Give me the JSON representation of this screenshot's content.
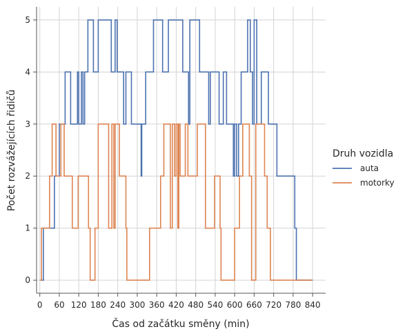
{
  "chart_data": {
    "type": "line",
    "drawstyle": "steps-post",
    "xlabel": "Čas od začátku směny (min)",
    "ylabel": "Počet rozvážejících řidičů",
    "xlim": [
      -10,
      880
    ],
    "ylim": [
      -0.25,
      5.25
    ],
    "xticks": [
      0,
      60,
      120,
      180,
      240,
      300,
      360,
      420,
      480,
      540,
      600,
      660,
      720,
      780,
      840
    ],
    "yticks": [
      0,
      1,
      2,
      3,
      4,
      5
    ],
    "grid": true,
    "legend": {
      "title": "Druh vozidla",
      "placement": "center-right, outside plot"
    },
    "series": [
      {
        "name": "auta",
        "color": "#4c72b0",
        "points": [
          [
            4,
            0
          ],
          [
            11,
            1
          ],
          [
            45,
            2
          ],
          [
            60,
            3
          ],
          [
            78,
            4
          ],
          [
            95,
            3
          ],
          [
            116,
            4
          ],
          [
            120,
            3
          ],
          [
            128,
            4
          ],
          [
            133,
            3
          ],
          [
            138,
            4
          ],
          [
            148,
            5
          ],
          [
            165,
            4
          ],
          [
            180,
            5
          ],
          [
            220,
            4
          ],
          [
            232,
            5
          ],
          [
            238,
            4
          ],
          [
            258,
            3
          ],
          [
            265,
            4
          ],
          [
            282,
            3
          ],
          [
            312,
            2
          ],
          [
            314,
            3
          ],
          [
            326,
            4
          ],
          [
            350,
            5
          ],
          [
            378,
            4
          ],
          [
            396,
            5
          ],
          [
            440,
            4
          ],
          [
            458,
            3
          ],
          [
            462,
            5
          ],
          [
            492,
            4
          ],
          [
            520,
            3
          ],
          [
            525,
            4
          ],
          [
            552,
            3
          ],
          [
            565,
            4
          ],
          [
            575,
            3
          ],
          [
            596,
            2
          ],
          [
            600,
            3
          ],
          [
            606,
            2
          ],
          [
            612,
            3
          ],
          [
            620,
            4
          ],
          [
            640,
            5
          ],
          [
            648,
            4
          ],
          [
            655,
            3
          ],
          [
            660,
            5
          ],
          [
            668,
            3
          ],
          [
            682,
            4
          ],
          [
            704,
            3
          ],
          [
            730,
            2
          ],
          [
            785,
            1
          ],
          [
            790,
            0
          ],
          [
            840,
            0
          ]
        ]
      },
      {
        "name": "motorky",
        "color": "#dd8452",
        "points": [
          [
            0,
            0
          ],
          [
            5,
            1
          ],
          [
            30,
            2
          ],
          [
            38,
            3
          ],
          [
            50,
            2
          ],
          [
            65,
            3
          ],
          [
            75,
            2
          ],
          [
            100,
            1
          ],
          [
            118,
            2
          ],
          [
            150,
            1
          ],
          [
            155,
            0
          ],
          [
            170,
            1
          ],
          [
            180,
            3
          ],
          [
            212,
            1
          ],
          [
            222,
            3
          ],
          [
            228,
            1
          ],
          [
            232,
            3
          ],
          [
            245,
            2
          ],
          [
            265,
            1
          ],
          [
            268,
            0
          ],
          [
            338,
            1
          ],
          [
            372,
            2
          ],
          [
            382,
            3
          ],
          [
            402,
            1
          ],
          [
            408,
            3
          ],
          [
            415,
            2
          ],
          [
            420,
            3
          ],
          [
            425,
            1
          ],
          [
            428,
            3
          ],
          [
            432,
            2
          ],
          [
            448,
            3
          ],
          [
            456,
            2
          ],
          [
            485,
            3
          ],
          [
            510,
            1
          ],
          [
            538,
            2
          ],
          [
            555,
            1
          ],
          [
            558,
            0
          ],
          [
            600,
            1
          ],
          [
            615,
            2
          ],
          [
            625,
            3
          ],
          [
            645,
            2
          ],
          [
            652,
            0
          ],
          [
            665,
            3
          ],
          [
            692,
            2
          ],
          [
            700,
            1
          ],
          [
            710,
            0
          ],
          [
            840,
            0
          ]
        ]
      }
    ]
  }
}
